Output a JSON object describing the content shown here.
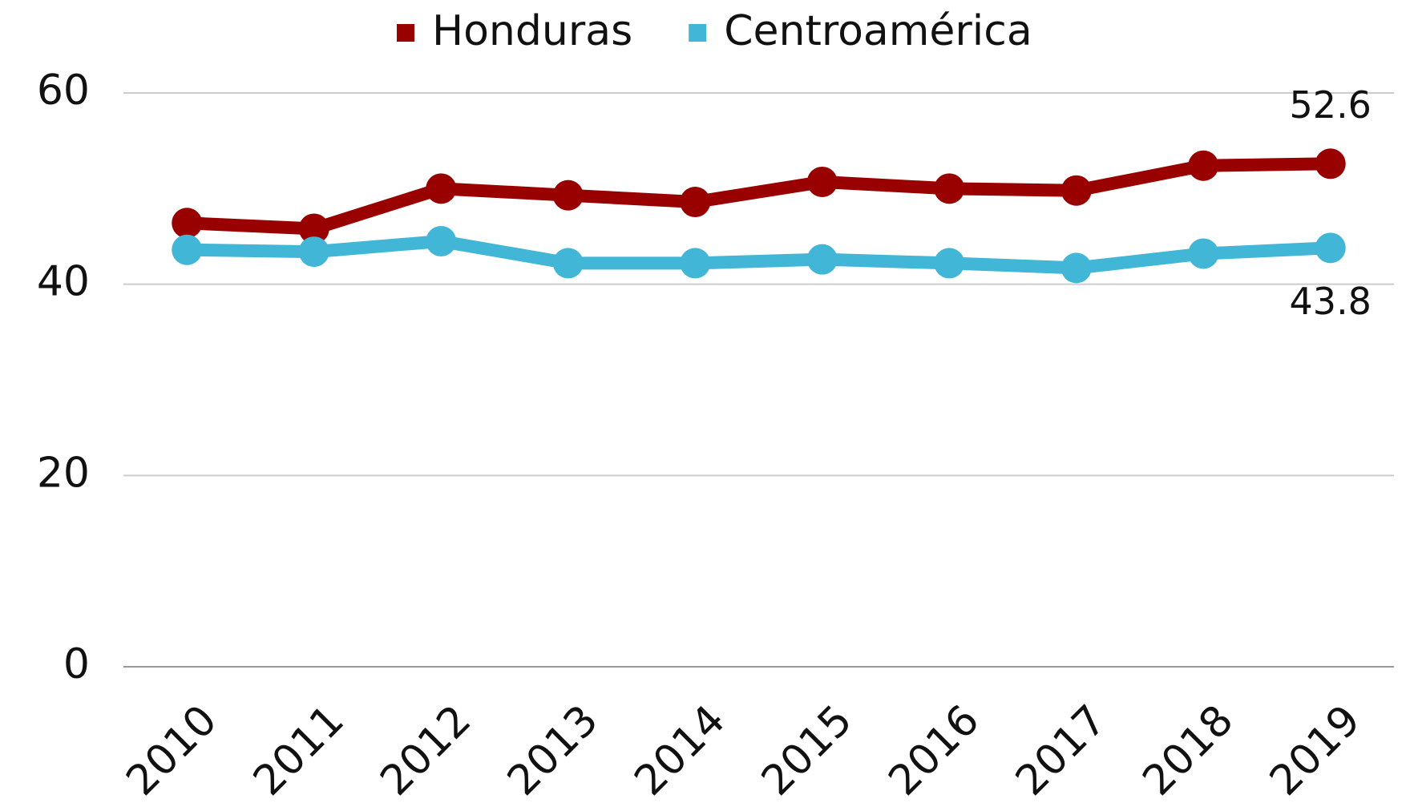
{
  "chart_data": {
    "type": "line",
    "categories": [
      "2010",
      "2011",
      "2012",
      "2013",
      "2014",
      "2015",
      "2016",
      "2017",
      "2018",
      "2019"
    ],
    "series": [
      {
        "name": "Honduras",
        "color": "#990000",
        "values": [
          46.4,
          45.8,
          50.0,
          49.3,
          48.6,
          50.7,
          50.0,
          49.8,
          52.4,
          52.6
        ]
      },
      {
        "name": "Centroamérica",
        "color": "#41b6d6",
        "values": [
          43.6,
          43.4,
          44.5,
          42.2,
          42.2,
          42.6,
          42.2,
          41.7,
          43.2,
          43.8
        ]
      }
    ],
    "ylim": [
      0,
      60
    ],
    "yticks": [
      0,
      20,
      40,
      60
    ],
    "grid": true,
    "legend": "top"
  }
}
